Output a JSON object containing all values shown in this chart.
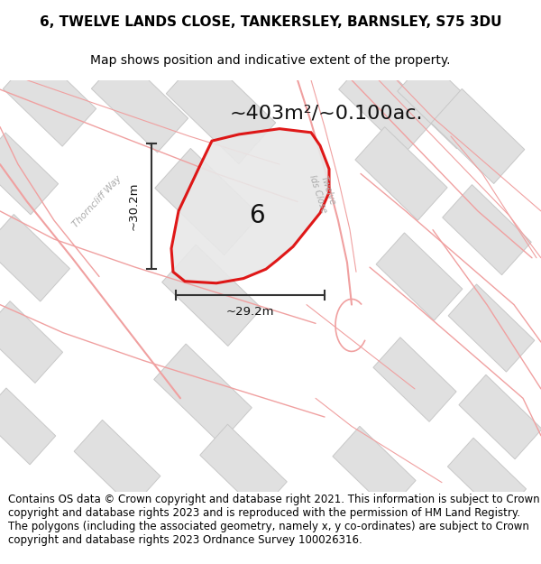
{
  "title": "6, TWELVE LANDS CLOSE, TANKERSLEY, BARNSLEY, S75 3DU",
  "subtitle": "Map shows position and indicative extent of the property.",
  "area_text": "~403m²/~0.100ac.",
  "width_label": "~29.2m",
  "height_label": "~30.2m",
  "plot_number": "6",
  "footer": "Contains OS data © Crown copyright and database right 2021. This information is subject to Crown copyright and database rights 2023 and is reproduced with the permission of HM Land Registry. The polygons (including the associated geometry, namely x, y co-ordinates) are subject to Crown copyright and database rights 2023 Ordnance Survey 100026316.",
  "map_bg": "#f5f5f5",
  "plot_fill": "#e8e8e8",
  "plot_outline": "#dd0000",
  "building_fill": "#e0e0e0",
  "building_edge": "#c8c8c8",
  "pink_line": "#f0a0a0",
  "road_text": "#aaaaaa",
  "title_fontsize": 11,
  "subtitle_fontsize": 10,
  "footer_fontsize": 8.5,
  "area_fontsize": 16,
  "label_fontsize": 9.5,
  "number_fontsize": 20
}
